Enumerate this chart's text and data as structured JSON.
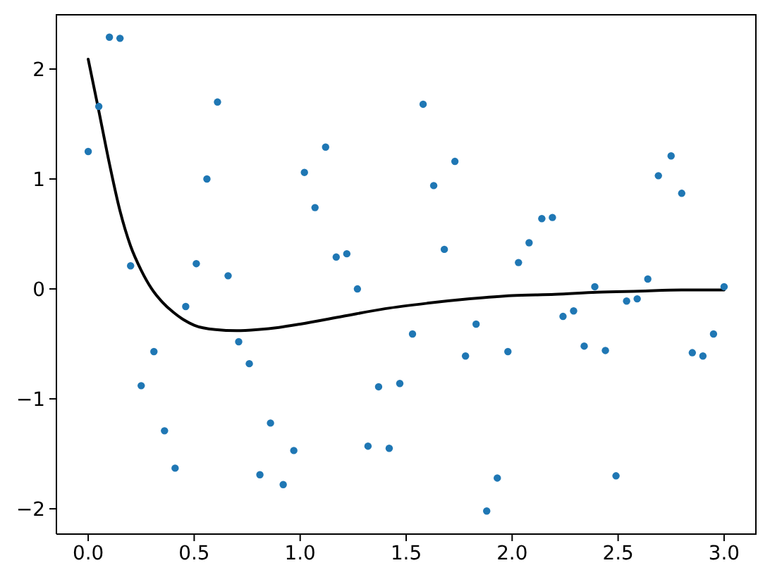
{
  "chart_data": {
    "type": "scatter",
    "xlim": [
      -0.15,
      3.15
    ],
    "ylim": [
      -2.23,
      2.5
    ],
    "xticks": [
      {
        "value": 0,
        "label": "0.0"
      },
      {
        "value": 0.5,
        "label": "0.5"
      },
      {
        "value": 1,
        "label": "1.0"
      },
      {
        "value": 1.5,
        "label": "1.5"
      },
      {
        "value": 2,
        "label": "2.0"
      },
      {
        "value": 2.5,
        "label": "2.5"
      },
      {
        "value": 3,
        "label": "3.0"
      }
    ],
    "yticks": [
      {
        "value": -2,
        "label": "−2"
      },
      {
        "value": -1,
        "label": "−1"
      },
      0,
      1,
      2
    ],
    "marker": "circle",
    "x": [
      0,
      0.05,
      0.1,
      0.15,
      0.2,
      0.25,
      0.31,
      0.36,
      0.41,
      0.46,
      0.51,
      0.56,
      0.61,
      0.66,
      0.71,
      0.76,
      0.81,
      0.86,
      0.92,
      0.97,
      1.02,
      1.07,
      1.12,
      1.17,
      1.22,
      1.27,
      1.32,
      1.37,
      1.42,
      1.47,
      1.53,
      1.58,
      1.63,
      1.68,
      1.73,
      1.78,
      1.83,
      1.88,
      1.93,
      1.98,
      2.03,
      2.08,
      2.14,
      2.19,
      2.24,
      2.29,
      2.34,
      2.39,
      2.44,
      2.49,
      2.54,
      2.59,
      2.64,
      2.69,
      2.75,
      2.8,
      2.85,
      2.9,
      2.95,
      3
    ],
    "series": [
      {
        "color": "#1f77b4",
        "values": [
          1.25,
          1.66,
          2.29,
          2.28,
          0.21,
          -0.88,
          -0.57,
          -1.29,
          -1.63,
          -0.16,
          0.23,
          1.0,
          1.7,
          0.12,
          -0.48,
          -0.68,
          -1.69,
          -1.22,
          -1.78,
          -1.47,
          1.06,
          0.74,
          1.29,
          0.29,
          0.32,
          0.0,
          -1.43,
          -0.89,
          -1.45,
          -0.86,
          -0.41,
          1.68,
          0.94,
          0.36,
          1.16,
          -0.61,
          -0.32,
          -2.02,
          -1.72,
          -0.57,
          0.24,
          0.42,
          0.64,
          0.65,
          -0.25,
          -0.2,
          -0.52,
          0.02,
          -0.56,
          -1.7,
          -0.11,
          -0.09,
          0.09,
          1.03,
          1.21,
          0.87,
          -0.58,
          -0.61,
          -0.41,
          0.02
        ]
      },
      {
        "type": "line",
        "color": "#000000",
        "marker": "none",
        "line_style": "solid",
        "x": [
          0,
          0.05,
          0.1,
          0.15,
          0.2,
          0.25,
          0.3,
          0.35,
          0.4,
          0.45,
          0.5,
          0.6,
          0.7,
          0.8,
          0.9,
          1.0,
          1.2,
          1.4,
          1.6,
          1.8,
          2.0,
          2.2,
          2.4,
          2.6,
          2.8,
          3.0
        ],
        "values": [
          2.09,
          1.62,
          1.14,
          0.71,
          0.39,
          0.17,
          0.0,
          -0.12,
          -0.21,
          -0.28,
          -0.33,
          -0.37,
          -0.38,
          -0.37,
          -0.35,
          -0.32,
          -0.25,
          -0.18,
          -0.13,
          -0.09,
          -0.06,
          -0.05,
          -0.03,
          -0.02,
          -0.01,
          -0.01
        ]
      }
    ]
  }
}
